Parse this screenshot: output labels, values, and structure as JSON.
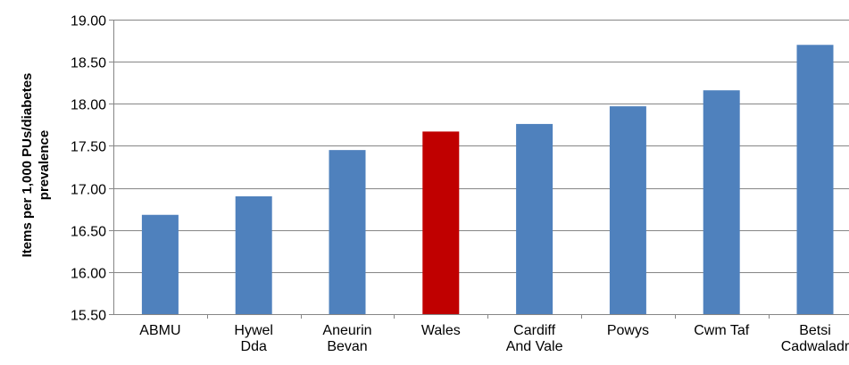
{
  "chart_data": {
    "type": "bar",
    "title": "",
    "xlabel": "",
    "ylabel_lines": [
      "Items per 1,000 PUs/diabetes",
      "prevalence"
    ],
    "ylim": [
      15.5,
      19.0
    ],
    "yticks": [
      "15.50",
      "16.00",
      "16.50",
      "17.00",
      "17.50",
      "18.00",
      "18.50",
      "19.00"
    ],
    "ytick_values": [
      15.5,
      16.0,
      16.5,
      17.0,
      17.5,
      18.0,
      18.5,
      19.0
    ],
    "grid": true,
    "legend": "none",
    "categories": [
      [
        "ABMU"
      ],
      [
        "Hywel",
        "Dda"
      ],
      [
        "Aneurin",
        "Bevan"
      ],
      [
        "Wales"
      ],
      [
        "Cardiff",
        "And Vale"
      ],
      [
        "Powys"
      ],
      [
        "Cwm Taf"
      ],
      [
        "Betsi",
        "Cadwaladr"
      ]
    ],
    "values": [
      16.68,
      16.9,
      17.45,
      17.67,
      17.76,
      17.97,
      18.16,
      18.7
    ],
    "bar_colors": [
      "#4f81bd",
      "#4f81bd",
      "#4f81bd",
      "#c00000",
      "#4f81bd",
      "#4f81bd",
      "#4f81bd",
      "#4f81bd"
    ],
    "gridline_color": "#868686",
    "axis_color": "#868686"
  }
}
